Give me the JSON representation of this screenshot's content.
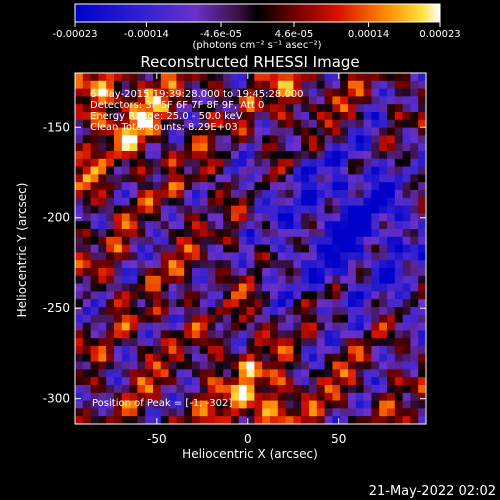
{
  "chart_data": {
    "type": "heatmap",
    "title": "Reconstructed RHESSI Image",
    "xlabel": "Heliocentric X (arcsec)",
    "ylabel": "Heliocentric Y (arcsec)",
    "xlim": [
      -95,
      98
    ],
    "ylim": [
      -314,
      -120
    ],
    "x_ticks": [
      -50,
      0,
      50
    ],
    "y_ticks": [
      -150,
      -200,
      -250,
      -300
    ],
    "colorbar": {
      "colormap": "rhessi-heat",
      "range": [
        -0.00023,
        0.00023
      ],
      "tick_values": [
        -0.00023,
        -0.00014,
        -4.6e-05,
        4.6e-05,
        0.00014,
        0.00023
      ],
      "tick_labels": [
        "-0.00023",
        "-0.00014",
        "-4.6e-05",
        "4.6e-05",
        "0.00014",
        "0.00023"
      ],
      "units_label": "(photons cm⁻² s⁻¹ asec⁻²)"
    },
    "annotations": [
      "6-May-2015 19:39:28.000 to 19:45:28.000",
      "Detectors: 3F 5F 6F 7F 8F 9F, Att 0",
      "Energy Range: 25.0 - 50.0 keV",
      "Clean     Total counts: 8.29E+03"
    ],
    "peak_label": "Position of Peak = [-1, -302]",
    "grid": false
  },
  "timestamp": "21-May-2022 02:02",
  "colors": {
    "background": "#000000",
    "foreground": "#ffffff"
  }
}
